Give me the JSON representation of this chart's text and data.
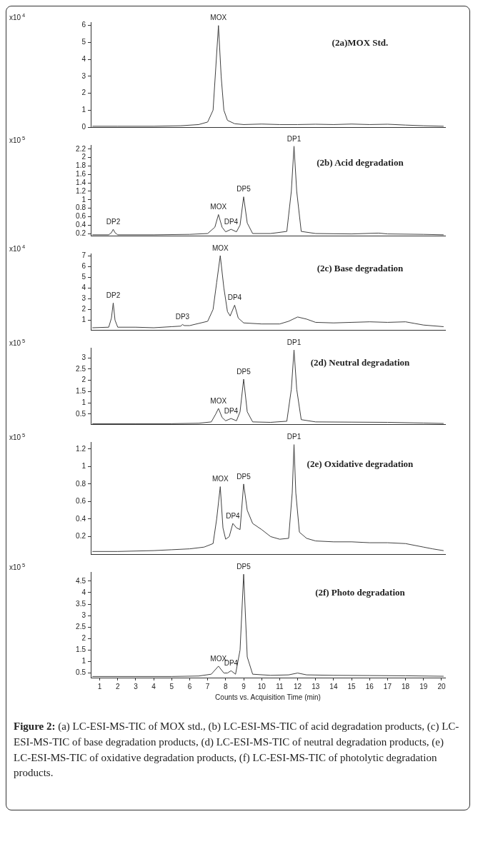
{
  "chart_data": [
    {
      "type": "line",
      "title": "(2a)MOX Std.",
      "ylabel": "x10$^{4}$",
      "xlim": [
        0.5,
        20.2
      ],
      "xticks": [
        1,
        2,
        3,
        4,
        5,
        6,
        7,
        8,
        9,
        10,
        11,
        12,
        13,
        14,
        15,
        16,
        17,
        18,
        19,
        20
      ],
      "ylim": [
        0,
        6.2
      ],
      "yticks": [
        0,
        1,
        2,
        3,
        4,
        5,
        6
      ],
      "grid": false,
      "legend": false,
      "marker": "none",
      "line_style": "solid",
      "tick_labels": "y",
      "x": [
        0.6,
        2,
        4,
        5.5,
        6.5,
        7.0,
        7.3,
        7.45,
        7.6,
        7.75,
        7.9,
        8.1,
        8.5,
        9,
        10,
        11,
        12,
        13,
        14,
        15,
        16,
        17,
        18,
        19,
        20.1
      ],
      "series": [
        {
          "color": "#404040",
          "values": [
            0.05,
            0.05,
            0.05,
            0.08,
            0.15,
            0.3,
            1.0,
            3.5,
            6.0,
            3.0,
            1.0,
            0.4,
            0.2,
            0.15,
            0.18,
            0.15,
            0.15,
            0.17,
            0.15,
            0.18,
            0.15,
            0.17,
            0.12,
            0.08,
            0.05
          ]
        }
      ],
      "annotations": [
        {
          "text": "MOX",
          "x": 7.6,
          "y": 6.0
        }
      ]
    },
    {
      "type": "line",
      "title": "(2b) Acid degradation",
      "ylabel": "x10$^{5}$",
      "xlim": [
        0.5,
        20.2
      ],
      "xticks": [
        1,
        2,
        3,
        4,
        5,
        6,
        7,
        8,
        9,
        10,
        11,
        12,
        13,
        14,
        15,
        16,
        17,
        18,
        19,
        20
      ],
      "ylim": [
        0.15,
        2.3
      ],
      "yticks": [
        0.2,
        0.4,
        0.6,
        0.8,
        1,
        1.2,
        1.4,
        1.6,
        1.8,
        2,
        2.2
      ],
      "grid": false,
      "legend": false,
      "marker": "none",
      "line_style": "solid",
      "tick_labels": "y",
      "x": [
        0.6,
        1.5,
        1.65,
        1.75,
        1.85,
        2.0,
        4,
        6,
        7.0,
        7.4,
        7.6,
        7.8,
        8.0,
        8.3,
        8.6,
        8.8,
        9.0,
        9.2,
        9.5,
        10.5,
        11.4,
        11.65,
        11.8,
        11.95,
        12.2,
        13,
        15,
        16.5,
        17,
        19,
        20.1
      ],
      "series": [
        {
          "color": "#404040",
          "values": [
            0.17,
            0.17,
            0.22,
            0.3,
            0.22,
            0.17,
            0.17,
            0.18,
            0.2,
            0.35,
            0.65,
            0.35,
            0.24,
            0.3,
            0.24,
            0.4,
            1.07,
            0.45,
            0.2,
            0.2,
            0.25,
            1.2,
            2.27,
            1.2,
            0.25,
            0.2,
            0.19,
            0.21,
            0.19,
            0.18,
            0.17
          ]
        }
      ],
      "annotations": [
        {
          "text": "DP2",
          "x": 1.75,
          "y": 0.3
        },
        {
          "text": "MOX",
          "x": 7.6,
          "y": 0.65
        },
        {
          "text": "DP4",
          "x": 8.3,
          "y": 0.3
        },
        {
          "text": "DP5",
          "x": 9.0,
          "y": 1.07
        },
        {
          "text": "DP1",
          "x": 11.8,
          "y": 2.27
        }
      ]
    },
    {
      "type": "line",
      "title": "(2c) Base degradation",
      "ylabel": "x10$^{4}$",
      "xlim": [
        0.5,
        20.2
      ],
      "xticks": [
        1,
        2,
        3,
        4,
        5,
        6,
        7,
        8,
        9,
        10,
        11,
        12,
        13,
        14,
        15,
        16,
        17,
        18,
        19,
        20
      ],
      "ylim": [
        0.1,
        7.2
      ],
      "yticks": [
        1,
        2,
        3,
        4,
        5,
        6,
        7
      ],
      "grid": false,
      "legend": false,
      "marker": "none",
      "line_style": "solid",
      "tick_labels": "y",
      "x": [
        0.6,
        1.5,
        1.65,
        1.75,
        1.85,
        2.0,
        3,
        4,
        5,
        5.5,
        5.6,
        5.7,
        6,
        7.0,
        7.3,
        7.5,
        7.7,
        7.9,
        8.1,
        8.25,
        8.5,
        8.7,
        9.0,
        10,
        11,
        11.5,
        12,
        12.5,
        13,
        14,
        15,
        16,
        17,
        18,
        18.5,
        19,
        20.1
      ],
      "series": [
        {
          "color": "#404040",
          "values": [
            0.3,
            0.35,
            1.2,
            2.6,
            1.0,
            0.35,
            0.35,
            0.3,
            0.4,
            0.45,
            0.6,
            0.5,
            0.5,
            0.9,
            2.0,
            4.5,
            7.0,
            4.0,
            1.8,
            1.4,
            2.4,
            1.2,
            0.75,
            0.65,
            0.65,
            0.9,
            1.3,
            1.1,
            0.8,
            0.75,
            0.8,
            0.85,
            0.8,
            0.85,
            0.7,
            0.55,
            0.4
          ]
        }
      ],
      "annotations": [
        {
          "text": "DP2",
          "x": 1.75,
          "y": 2.6
        },
        {
          "text": "DP3",
          "x": 5.6,
          "y": 0.6
        },
        {
          "text": "MOX",
          "x": 7.7,
          "y": 7.0
        },
        {
          "text": "DP4",
          "x": 8.5,
          "y": 2.4
        }
      ]
    },
    {
      "type": "line",
      "title": "(2d) Neutral degradation",
      "ylabel": "x10$^{5}$",
      "xlim": [
        0.5,
        20.2
      ],
      "xticks": [
        1,
        2,
        3,
        4,
        5,
        6,
        7,
        8,
        9,
        10,
        11,
        12,
        13,
        14,
        15,
        16,
        17,
        18,
        19,
        20
      ],
      "ylim": [
        0.05,
        3.45
      ],
      "yticks": [
        0.5,
        1,
        1.5,
        2,
        2.5,
        3
      ],
      "grid": false,
      "legend": false,
      "marker": "none",
      "line_style": "solid",
      "tick_labels": "y",
      "x": [
        0.6,
        3,
        5,
        6.5,
        7.2,
        7.45,
        7.6,
        7.8,
        8.0,
        8.3,
        8.6,
        8.8,
        9.0,
        9.2,
        9.5,
        10.5,
        11.4,
        11.65,
        11.8,
        11.95,
        12.2,
        13,
        15,
        17,
        19,
        20.1
      ],
      "series": [
        {
          "color": "#404040",
          "values": [
            0.07,
            0.07,
            0.07,
            0.09,
            0.15,
            0.5,
            0.75,
            0.35,
            0.2,
            0.3,
            0.2,
            0.6,
            2.05,
            0.6,
            0.15,
            0.13,
            0.18,
            1.6,
            3.35,
            1.6,
            0.25,
            0.15,
            0.14,
            0.13,
            0.1,
            0.08
          ]
        }
      ],
      "annotations": [
        {
          "text": "MOX",
          "x": 7.6,
          "y": 0.75
        },
        {
          "text": "DP4",
          "x": 8.3,
          "y": 0.3
        },
        {
          "text": "DP5",
          "x": 9.0,
          "y": 2.05
        },
        {
          "text": "DP1",
          "x": 11.8,
          "y": 3.35
        }
      ]
    },
    {
      "type": "line",
      "title": "(2e) Oxidative degradation",
      "ylabel": "x10$^{5}$",
      "xlim": [
        0.5,
        20.2
      ],
      "xticks": [
        1,
        2,
        3,
        4,
        5,
        6,
        7,
        8,
        9,
        10,
        11,
        12,
        13,
        14,
        15,
        16,
        17,
        18,
        19,
        20
      ],
      "ylim": [
        0,
        1.28
      ],
      "yticks": [
        0.2,
        0.4,
        0.6,
        0.8,
        1,
        1.2
      ],
      "grid": false,
      "legend": false,
      "marker": "none",
      "line_style": "solid",
      "tick_labels": "y",
      "x": [
        0.6,
        2,
        4,
        5,
        6,
        6.8,
        7.3,
        7.5,
        7.7,
        7.85,
        8.0,
        8.2,
        8.4,
        8.6,
        8.8,
        9.0,
        9.2,
        9.5,
        10,
        10.5,
        11,
        11.5,
        11.7,
        11.8,
        11.9,
        12.1,
        12.5,
        13,
        14,
        15,
        16,
        17,
        18,
        19,
        19.5,
        20.1
      ],
      "series": [
        {
          "color": "#404040",
          "values": [
            0.03,
            0.03,
            0.04,
            0.05,
            0.06,
            0.08,
            0.12,
            0.4,
            0.77,
            0.3,
            0.17,
            0.2,
            0.35,
            0.3,
            0.28,
            0.8,
            0.5,
            0.35,
            0.28,
            0.2,
            0.17,
            0.18,
            0.7,
            1.25,
            0.7,
            0.25,
            0.18,
            0.15,
            0.14,
            0.14,
            0.13,
            0.13,
            0.12,
            0.08,
            0.06,
            0.04
          ]
        }
      ],
      "annotations": [
        {
          "text": "MOX",
          "x": 7.7,
          "y": 0.77
        },
        {
          "text": "DP4",
          "x": 8.4,
          "y": 0.35
        },
        {
          "text": "DP5",
          "x": 9.0,
          "y": 0.8
        },
        {
          "text": "DP1",
          "x": 11.8,
          "y": 1.25
        }
      ]
    },
    {
      "type": "line",
      "title": "(2f) Photo degradation",
      "ylabel": "x10$^{5}$",
      "xlabel": "Counts vs. Acquisition Time (min)",
      "xlim": [
        0.5,
        20.2
      ],
      "xticks": [
        1,
        2,
        3,
        4,
        5,
        6,
        7,
        8,
        9,
        10,
        11,
        12,
        13,
        14,
        15,
        16,
        17,
        18,
        19,
        20
      ],
      "ylim": [
        0.3,
        4.9
      ],
      "yticks": [
        0.5,
        1,
        1.5,
        2,
        2.5,
        3,
        3.5,
        4,
        4.5
      ],
      "grid": false,
      "legend": false,
      "marker": "none",
      "line_style": "solid",
      "x": [
        0.6,
        3,
        5,
        6.5,
        7.2,
        7.6,
        7.9,
        8.1,
        8.3,
        8.55,
        8.8,
        9.0,
        9.2,
        9.5,
        10.5,
        11.5,
        12,
        12.5,
        14,
        16,
        18,
        20.1
      ],
      "series": [
        {
          "color": "#404040",
          "values": [
            0.35,
            0.35,
            0.35,
            0.37,
            0.45,
            0.8,
            0.5,
            0.5,
            0.6,
            0.45,
            1.5,
            4.8,
            1.2,
            0.45,
            0.4,
            0.42,
            0.5,
            0.42,
            0.4,
            0.39,
            0.38,
            0.36
          ]
        }
      ],
      "annotations": [
        {
          "text": "MOX",
          "x": 7.6,
          "y": 0.8
        },
        {
          "text": "DP4",
          "x": 8.3,
          "y": 0.6
        },
        {
          "text": "DP5",
          "x": 9.0,
          "y": 4.8
        },
        "Figure 2: (a) LC-ESI-MS-TIC of MOX std., (b) LC-ESI-MS-TIC of acid degradation products, (c) LC-ESI-MS-TIC of base degradation products, (d) LC-ESI-MS-TIC of neutral degradation products, (e) LC-ESI-MS-TIC of oxidative degradation products, (f) LC-ESI-MS-TIC of photolytic degradation products."
      ]
    }
  ]
}
